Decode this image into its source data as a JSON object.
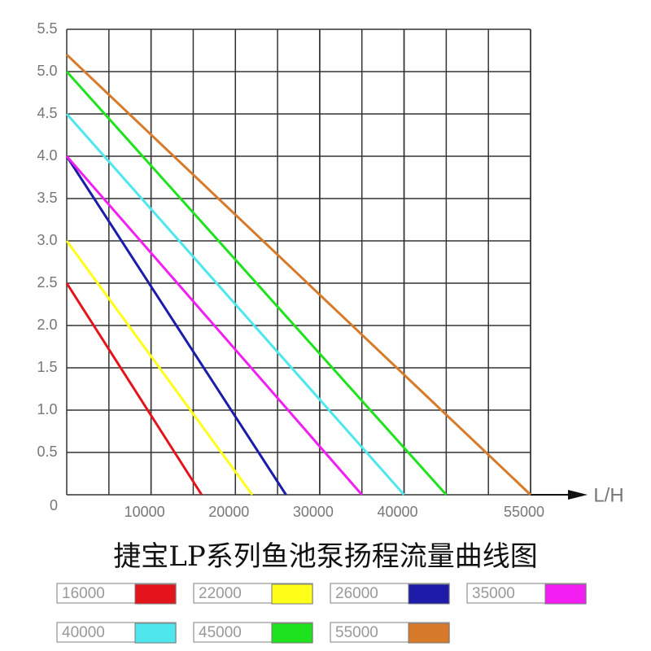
{
  "chart_data": {
    "type": "line",
    "title": "捷宝LP系列鱼池泵扬程流量曲线图",
    "x_label": "L/H",
    "xlim": [
      0,
      55000
    ],
    "ylim": [
      0,
      5.5
    ],
    "xticks": [
      0,
      10000,
      20000,
      30000,
      40000,
      55000
    ],
    "yticks": [
      0,
      0.5,
      {
        "value": 1,
        "label": "1.0"
      },
      1.5,
      {
        "value": 2,
        "label": "2.0"
      },
      2.5,
      {
        "value": 3,
        "label": "3.0"
      },
      3.5,
      {
        "value": 4,
        "label": "4.0"
      },
      4.5,
      {
        "value": 5,
        "label": "5.0"
      },
      5.5
    ],
    "grid": true,
    "series": [
      {
        "name": "16000",
        "color": "#e4141c",
        "x": [
          0,
          16000
        ],
        "values": [
          2.5,
          0
        ]
      },
      {
        "name": "22000",
        "color": "#ffff1a",
        "x": [
          0,
          22000
        ],
        "values": [
          3.0,
          0
        ]
      },
      {
        "name": "26000",
        "color": "#1c1ca8",
        "x": [
          0,
          26000
        ],
        "values": [
          4.0,
          0
        ]
      },
      {
        "name": "35000",
        "color": "#f21ef2",
        "x": [
          0,
          35000
        ],
        "values": [
          4.0,
          0
        ]
      },
      {
        "name": "40000",
        "color": "#4fe6ee",
        "x": [
          0,
          40000
        ],
        "values": [
          4.5,
          0
        ]
      },
      {
        "name": "45000",
        "color": "#1ee21e",
        "x": [
          0,
          45000
        ],
        "values": [
          5.0,
          0
        ]
      },
      {
        "name": "55000",
        "color": "#d77a2a",
        "x": [
          0,
          55000
        ],
        "values": [
          5.2,
          0
        ]
      }
    ]
  }
}
